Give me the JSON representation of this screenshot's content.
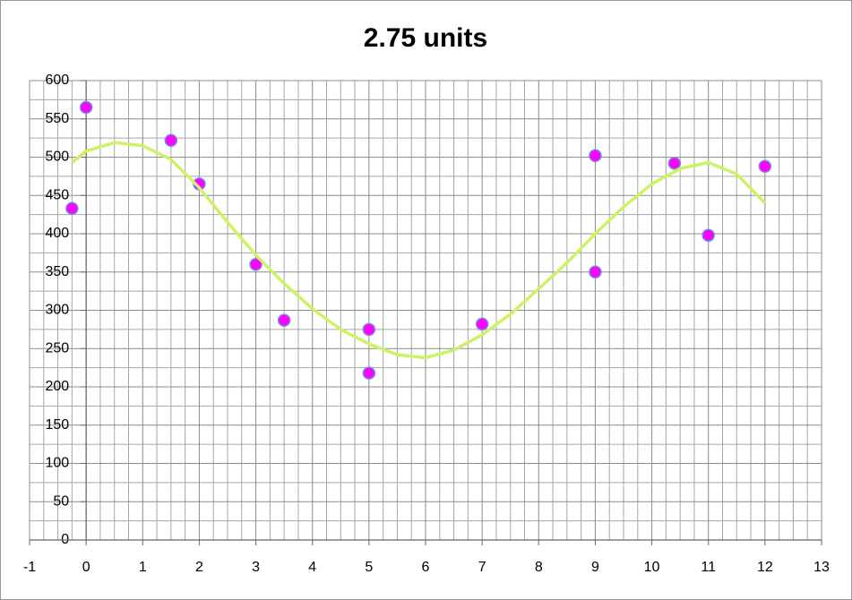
{
  "chart_data": {
    "type": "scatter",
    "title": "2.75 units",
    "xlim": [
      -1,
      13
    ],
    "xticks": [
      -1,
      0,
      1,
      2,
      3,
      4,
      5,
      6,
      7,
      8,
      9,
      10,
      11,
      12,
      13
    ],
    "ylim": [
      0,
      600
    ],
    "yticks": [
      0,
      50,
      100,
      150,
      200,
      250,
      300,
      350,
      400,
      450,
      500,
      550,
      600
    ],
    "grid": true,
    "series": [
      {
        "color": "#ff00ff",
        "edge_color": "#6f8fdc",
        "x": [
          -0.25,
          0,
          1.5,
          2,
          3,
          3.5,
          5,
          5,
          7,
          9,
          9,
          10.4,
          11,
          12
        ],
        "values": [
          433,
          565,
          522,
          465,
          360,
          287,
          275,
          218,
          282,
          502,
          350,
          492,
          398,
          488
        ]
      },
      {
        "color": "#ccf266",
        "line": true,
        "x": [
          -0.25,
          0,
          0.5,
          1,
          1.5,
          2,
          2.5,
          3,
          3.5,
          4,
          4.5,
          5,
          5.5,
          6,
          6.5,
          7,
          7.5,
          8,
          8.5,
          9,
          9.5,
          10,
          10.5,
          11,
          11.5,
          12
        ],
        "values": [
          493,
          508,
          519,
          515,
          497,
          460,
          415,
          372,
          335,
          302,
          275,
          256,
          242,
          238,
          248,
          268,
          295,
          328,
          362,
          400,
          435,
          465,
          485,
          493,
          478,
          440
        ]
      }
    ]
  }
}
